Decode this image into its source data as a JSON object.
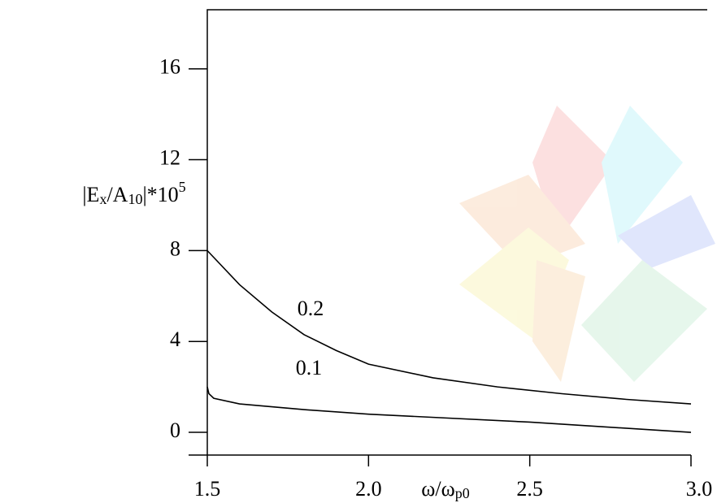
{
  "chart_data": {
    "type": "line",
    "y_label_parts": [
      "|E",
      "x",
      "/A",
      "10",
      "|*10",
      "5"
    ],
    "x_label_parts": [
      "ω/ω",
      "p0"
    ],
    "xlim": [
      1.5,
      3.0
    ],
    "xticks": [
      {
        "value": 1.5,
        "label": "1.5"
      },
      {
        "value": 2.0,
        "label": "2.0"
      },
      {
        "value": 2.5,
        "label": "2.5"
      },
      {
        "value": 3.0,
        "label": "3.0"
      }
    ],
    "ylim": [
      -1,
      18.6
    ],
    "yticks": [
      0,
      4,
      8,
      12,
      16
    ],
    "series": [
      {
        "name": "0.2",
        "color": "#000000",
        "x": [
          1.5,
          1.6,
          1.7,
          1.8,
          1.9,
          2.0,
          2.2,
          2.4,
          2.6,
          2.8,
          3.0
        ],
        "values": [
          8.0,
          6.5,
          5.3,
          4.3,
          3.6,
          3.0,
          2.4,
          2.0,
          1.7,
          1.45,
          1.25
        ]
      },
      {
        "name": "0.1",
        "color": "#000000",
        "x": [
          1.5,
          1.505,
          1.52,
          1.6,
          1.8,
          2.0,
          2.5,
          3.0
        ],
        "values": [
          2.0,
          1.7,
          1.5,
          1.25,
          1.0,
          0.8,
          0.45,
          0.0
        ]
      }
    ]
  }
}
